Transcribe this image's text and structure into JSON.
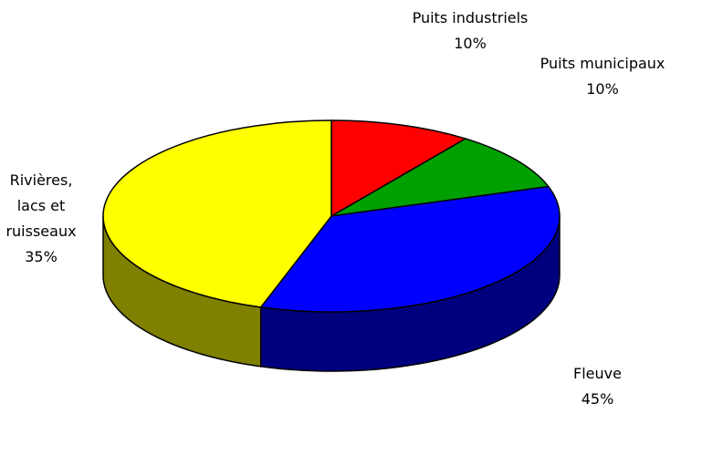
{
  "chart_data": {
    "type": "pie3d",
    "categories": [
      "Puits industriels",
      "Puits municipaux",
      "Rivières, lacs et ruisseaux",
      "Fleuve"
    ],
    "values": [
      10,
      10,
      35,
      45
    ],
    "value_labels": [
      "10%",
      "10%",
      "35%",
      "45%"
    ],
    "colors": [
      "#ff0000",
      "#00a000",
      "#0000ff",
      "#ffff00"
    ]
  }
}
